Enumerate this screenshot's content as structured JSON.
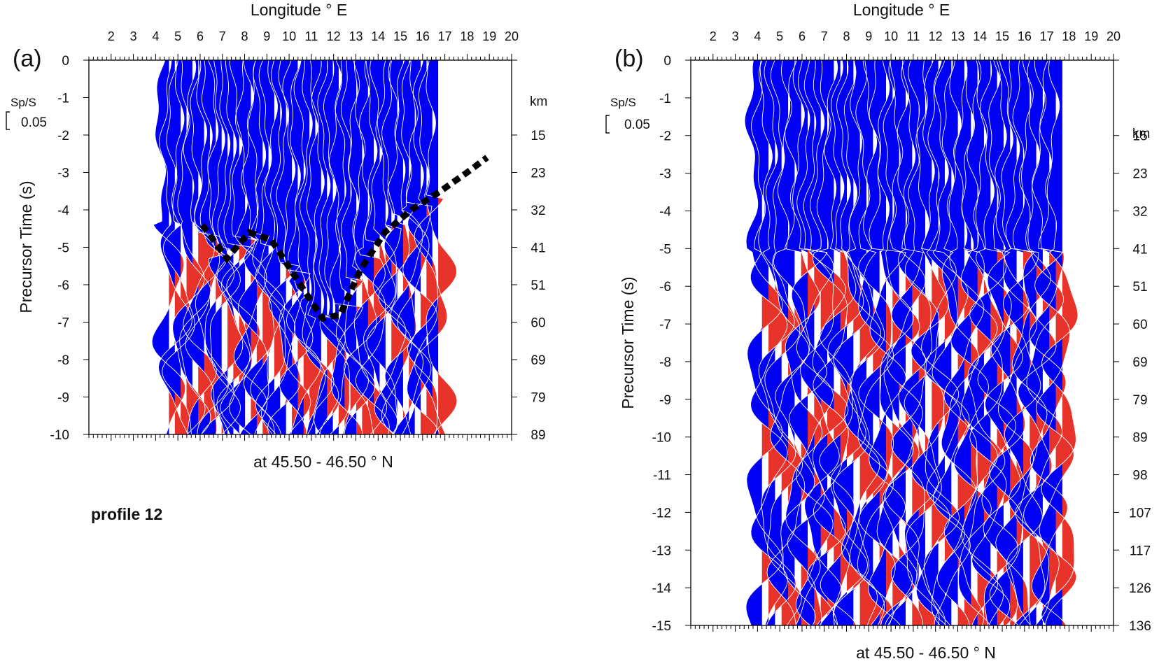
{
  "chart_data": [
    {
      "type": "wiggle-section",
      "panel_label": "(a)",
      "top_axis_label": "Longitude ° E",
      "bottom_label": "at 45.50 - 46.50 ° N",
      "ylabel": "Precursor Time (s)",
      "right_unit": "km",
      "scale_label": "Sp/S",
      "scale_value": "0.05",
      "note": "profile 12",
      "xlim": [
        1.0,
        20.0
      ],
      "ylim": [
        -10,
        0
      ],
      "x_ticks": [
        "2",
        "3",
        "4",
        "5",
        "6",
        "7",
        "8",
        "9",
        "10",
        "11",
        "12",
        "13",
        "14",
        "15",
        "16",
        "17",
        "18",
        "19",
        "20"
      ],
      "y_ticks": [
        "0",
        "-1",
        "-2",
        "-3",
        "-4",
        "-5",
        "-6",
        "-7",
        "-8",
        "-9",
        "-10"
      ],
      "depth_ticks": [
        {
          "t": -2,
          "km": "15"
        },
        {
          "t": -3,
          "km": "23"
        },
        {
          "t": -4,
          "km": "32"
        },
        {
          "t": -5,
          "km": "41"
        },
        {
          "t": -6,
          "km": "51"
        },
        {
          "t": -7,
          "km": "60"
        },
        {
          "t": -8,
          "km": "69"
        },
        {
          "t": -9,
          "km": "79"
        },
        {
          "t": -10,
          "km": "89"
        }
      ],
      "data_extent_lon": [
        4.6,
        16.7
      ],
      "positive_color": "#e8332a",
      "negative_color": "#0000f5",
      "interface": [
        {
          "lon": 6.1,
          "t": -4.4
        },
        {
          "lon": 7.2,
          "t": -5.3
        },
        {
          "lon": 8.2,
          "t": -4.6
        },
        {
          "lon": 9.2,
          "t": -4.8
        },
        {
          "lon": 10.4,
          "t": -5.9
        },
        {
          "lon": 11.5,
          "t": -6.9
        },
        {
          "lon": 12.3,
          "t": -6.8
        },
        {
          "lon": 13.2,
          "t": -5.6
        },
        {
          "lon": 14.3,
          "t": -4.6
        },
        {
          "lon": 15.5,
          "t": -4.0
        },
        {
          "lon": 16.8,
          "t": -3.5
        },
        {
          "lon": 18.0,
          "t": -3.0
        },
        {
          "lon": 18.9,
          "t": -2.6
        }
      ]
    },
    {
      "type": "wiggle-section",
      "panel_label": "(b)",
      "top_axis_label": "Longitude ° E",
      "bottom_label": "at 45.50 - 46.50 ° N",
      "ylabel": "Precursor Time (s)",
      "right_unit": "km",
      "scale_label": "Sp/S",
      "scale_value": "0.05",
      "xlim": [
        1.0,
        20.0
      ],
      "ylim": [
        -15,
        0
      ],
      "x_ticks": [
        "2",
        "3",
        "4",
        "5",
        "6",
        "7",
        "8",
        "9",
        "10",
        "11",
        "12",
        "13",
        "14",
        "15",
        "16",
        "17",
        "18",
        "19",
        "20"
      ],
      "y_ticks": [
        "0",
        "-1",
        "-2",
        "-3",
        "-4",
        "-5",
        "-6",
        "-7",
        "-8",
        "-9",
        "-10",
        "-11",
        "-12",
        "-13",
        "-14",
        "-15"
      ],
      "depth_ticks": [
        {
          "t": -2,
          "km": "15"
        },
        {
          "t": -3,
          "km": "23"
        },
        {
          "t": -4,
          "km": "32"
        },
        {
          "t": -5,
          "km": "41"
        },
        {
          "t": -6,
          "km": "51"
        },
        {
          "t": -7,
          "km": "60"
        },
        {
          "t": -8,
          "km": "69"
        },
        {
          "t": -9,
          "km": "79"
        },
        {
          "t": -10,
          "km": "89"
        },
        {
          "t": -11,
          "km": "98"
        },
        {
          "t": -12,
          "km": "107"
        },
        {
          "t": -13,
          "km": "117"
        },
        {
          "t": -14,
          "km": "126"
        },
        {
          "t": -15,
          "km": "136"
        }
      ],
      "data_extent_lon": [
        4.2,
        17.7
      ],
      "positive_color": "#e8332a",
      "negative_color": "#0000f5"
    }
  ]
}
